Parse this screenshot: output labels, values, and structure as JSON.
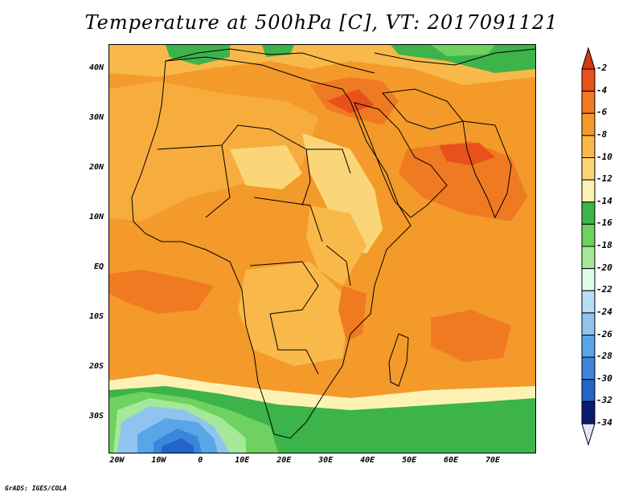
{
  "title": "Temperature at 500hPa [C], VT: 2017091121",
  "credit": "GrADS: IGES/COLA",
  "map": {
    "lon_range": [
      -22,
      80
    ],
    "lat_range": [
      -37,
      45
    ],
    "lat_ticks": [
      {
        "lat": 40,
        "label": "40N"
      },
      {
        "lat": 30,
        "label": "30N"
      },
      {
        "lat": 20,
        "label": "20N"
      },
      {
        "lat": 10,
        "label": "10N"
      },
      {
        "lat": 0,
        "label": "EQ"
      },
      {
        "lat": -10,
        "label": "10S"
      },
      {
        "lat": -20,
        "label": "20S"
      },
      {
        "lat": -30,
        "label": "30S"
      }
    ],
    "lon_ticks": [
      {
        "lon": -20,
        "label": "20W"
      },
      {
        "lon": -10,
        "label": "10W"
      },
      {
        "lon": 0,
        "label": "0"
      },
      {
        "lon": 10,
        "label": "10E"
      },
      {
        "lon": 20,
        "label": "20E"
      },
      {
        "lon": 30,
        "label": "30E"
      },
      {
        "lon": 40,
        "label": "40E"
      },
      {
        "lon": 50,
        "label": "50E"
      },
      {
        "lon": 60,
        "label": "60E"
      },
      {
        "lon": 70,
        "label": "70E"
      }
    ]
  },
  "colorbar": {
    "levels": [
      {
        "label": "-2",
        "color": "#e8501c"
      },
      {
        "label": "-4",
        "color": "#f07a22"
      },
      {
        "label": "-6",
        "color": "#f39a2a"
      },
      {
        "label": "-8",
        "color": "#f8b94a"
      },
      {
        "label": "-10",
        "color": "#fbd679"
      },
      {
        "label": "-12",
        "color": "#fdf2b4"
      },
      {
        "label": "-14",
        "color": "#3cb44a"
      },
      {
        "label": "-16",
        "color": "#6fd160"
      },
      {
        "label": "-18",
        "color": "#a6e89a"
      },
      {
        "label": "-20",
        "color": "#e0fbe6"
      },
      {
        "label": "-22",
        "color": "#b8ddf7"
      },
      {
        "label": "-24",
        "color": "#8ec4ef"
      },
      {
        "label": "-26",
        "color": "#5aa5e6"
      },
      {
        "label": "-28",
        "color": "#3a87da"
      },
      {
        "label": "-30",
        "color": "#2264c8"
      },
      {
        "label": "-32",
        "color": "#1440a2"
      },
      {
        "label": "-34",
        "color": "#0a1a6e"
      }
    ],
    "over_color": "#d23a10",
    "under_color": "#e8e4f8"
  }
}
